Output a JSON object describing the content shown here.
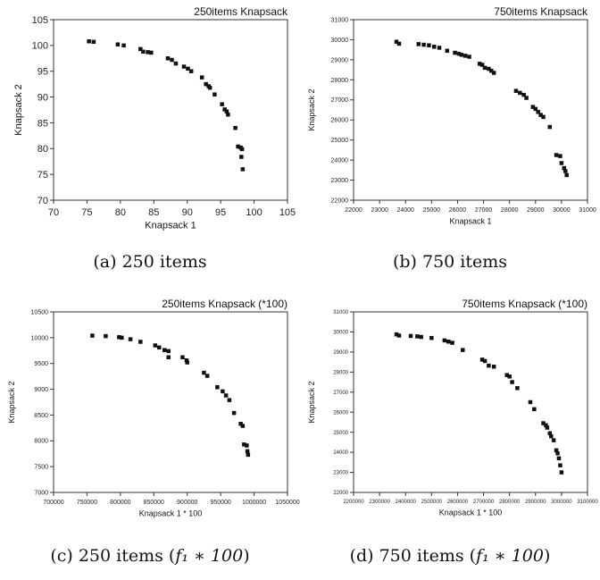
{
  "captions": [
    {
      "prefix": "(a) 250 items",
      "math": ""
    },
    {
      "prefix": "(b) 750 items",
      "math": ""
    },
    {
      "prefix": "(c) 250 items (",
      "math": "f₁ ∗ 100",
      "suffix": ")"
    },
    {
      "prefix": "(d) 750 items (",
      "math": "f₁ ∗ 100",
      "suffix": ")"
    }
  ],
  "chart_data": [
    {
      "type": "scatter",
      "title": "250items Knapsack",
      "xlabel": "Knapsack 1",
      "ylabel": "Knapsack 2",
      "xlim": [
        70,
        105
      ],
      "ylim": [
        70,
        105
      ],
      "xticks": [
        70,
        75,
        80,
        85,
        90,
        95,
        100,
        105
      ],
      "yticks": [
        70,
        75,
        80,
        85,
        90,
        95,
        100,
        105
      ],
      "xtick_labels": [
        "70",
        "75",
        "80",
        "85",
        "90",
        "95",
        "100",
        "105"
      ],
      "ytick_labels": [
        "70",
        "75",
        "80",
        "85",
        "90",
        "95",
        "100",
        "105"
      ],
      "tick_font": 11,
      "label_font": 11,
      "title_font": 12,
      "marker_color": "#111111",
      "points": [
        [
          75.3,
          100.8
        ],
        [
          76.0,
          100.7
        ],
        [
          79.6,
          100.2
        ],
        [
          80.5,
          100.0
        ],
        [
          83.0,
          99.3
        ],
        [
          83.4,
          98.8
        ],
        [
          84.1,
          98.7
        ],
        [
          84.6,
          98.6
        ],
        [
          87.1,
          97.5
        ],
        [
          87.7,
          97.2
        ],
        [
          88.3,
          96.5
        ],
        [
          89.5,
          95.9
        ],
        [
          90.1,
          95.5
        ],
        [
          90.6,
          95.0
        ],
        [
          92.2,
          93.8
        ],
        [
          92.8,
          92.5
        ],
        [
          93.2,
          92.1
        ],
        [
          93.4,
          91.8
        ],
        [
          94.1,
          90.5
        ],
        [
          95.2,
          88.6
        ],
        [
          95.6,
          87.6
        ],
        [
          95.9,
          87.2
        ],
        [
          96.1,
          86.6
        ],
        [
          97.2,
          84.0
        ],
        [
          97.6,
          80.4
        ],
        [
          98.0,
          80.2
        ],
        [
          98.2,
          79.9
        ],
        [
          98.1,
          78.4
        ],
        [
          98.3,
          76.0
        ]
      ]
    },
    {
      "type": "scatter",
      "title": "750items Knapsack",
      "xlabel": "Knapsack 1",
      "ylabel": "Knapsack 2",
      "xlim": [
        22000,
        31000
      ],
      "ylim": [
        22000,
        31000
      ],
      "xticks": [
        22000,
        23000,
        24000,
        25000,
        26000,
        27000,
        28000,
        29000,
        30000,
        31000
      ],
      "yticks": [
        22000,
        23000,
        24000,
        25000,
        26000,
        27000,
        28000,
        29000,
        30000,
        31000
      ],
      "xtick_labels": [
        "22000",
        "23000",
        "24000",
        "25000",
        "26000",
        "27000",
        "28000",
        "29000",
        "30000",
        "31000"
      ],
      "ytick_labels": [
        "22000",
        "23000",
        "24000",
        "25000",
        "26000",
        "27000",
        "28000",
        "29000",
        "30000",
        "31000"
      ],
      "tick_font": 7,
      "label_font": 9,
      "title_font": 12,
      "marker_color": "#111111",
      "points": [
        [
          23650,
          29900
        ],
        [
          23750,
          29800
        ],
        [
          24500,
          29780
        ],
        [
          24700,
          29750
        ],
        [
          24900,
          29720
        ],
        [
          25100,
          29650
        ],
        [
          25300,
          29600
        ],
        [
          25600,
          29450
        ],
        [
          25900,
          29350
        ],
        [
          26050,
          29300
        ],
        [
          26150,
          29250
        ],
        [
          26300,
          29200
        ],
        [
          26450,
          29150
        ],
        [
          26850,
          28800
        ],
        [
          26950,
          28750
        ],
        [
          27050,
          28600
        ],
        [
          27200,
          28550
        ],
        [
          27300,
          28450
        ],
        [
          27400,
          28350
        ],
        [
          28250,
          27450
        ],
        [
          28400,
          27350
        ],
        [
          28550,
          27250
        ],
        [
          28650,
          27100
        ],
        [
          28900,
          26650
        ],
        [
          29000,
          26550
        ],
        [
          29100,
          26400
        ],
        [
          29200,
          26250
        ],
        [
          29300,
          26150
        ],
        [
          29550,
          25650
        ],
        [
          29800,
          24250
        ],
        [
          29950,
          24200
        ],
        [
          30000,
          23850
        ],
        [
          30100,
          23600
        ],
        [
          30150,
          23450
        ],
        [
          30200,
          23250
        ]
      ]
    },
    {
      "type": "scatter",
      "title": "250items Knapsack (*100)",
      "xlabel": "Knapsack 1 * 100",
      "ylabel": "Knapsack 2",
      "xlim": [
        700000,
        1050000
      ],
      "ylim": [
        7000,
        10500
      ],
      "xticks": [
        700000,
        750000,
        800000,
        850000,
        900000,
        950000,
        1000000,
        1050000
      ],
      "yticks": [
        7000,
        7500,
        8000,
        8500,
        9000,
        9500,
        10000,
        10500
      ],
      "xtick_labels": [
        "700000",
        "750000",
        "800000",
        "850000",
        "900000",
        "950000",
        "1000000",
        "1050000"
      ],
      "ytick_labels": [
        "7000",
        "7500",
        "8000",
        "8500",
        "9000",
        "9500",
        "10000",
        "10500"
      ],
      "tick_font": 7,
      "label_font": 9,
      "title_font": 12,
      "marker_color": "#111111",
      "points": [
        [
          758000,
          10040
        ],
        [
          778000,
          10030
        ],
        [
          798000,
          10010
        ],
        [
          802000,
          10000
        ],
        [
          815000,
          9970
        ],
        [
          830000,
          9920
        ],
        [
          852000,
          9850
        ],
        [
          858000,
          9810
        ],
        [
          866000,
          9760
        ],
        [
          872000,
          9740
        ],
        [
          872000,
          9620
        ],
        [
          893000,
          9620
        ],
        [
          899000,
          9560
        ],
        [
          900000,
          9520
        ],
        [
          925000,
          9320
        ],
        [
          930000,
          9260
        ],
        [
          945000,
          9040
        ],
        [
          953000,
          8960
        ],
        [
          958000,
          8880
        ],
        [
          963000,
          8790
        ],
        [
          970000,
          8540
        ],
        [
          980000,
          8330
        ],
        [
          983000,
          8290
        ],
        [
          985000,
          7930
        ],
        [
          989000,
          7910
        ],
        [
          990000,
          7800
        ],
        [
          991000,
          7730
        ]
      ]
    },
    {
      "type": "scatter",
      "title": "750items Knapsack (*100)",
      "xlabel": "Knapsack 1 * 100",
      "ylabel": "Knapsack 2",
      "xlim": [
        2200000,
        3100000
      ],
      "ylim": [
        22000,
        31000
      ],
      "xticks": [
        2200000,
        2300000,
        2400000,
        2500000,
        2600000,
        2700000,
        2800000,
        2900000,
        3000000,
        3100000
      ],
      "yticks": [
        22000,
        23000,
        24000,
        25000,
        26000,
        27000,
        28000,
        29000,
        30000,
        31000
      ],
      "xtick_labels": [
        "2200000",
        "2300000",
        "2400000",
        "2500000",
        "2600000",
        "2700000",
        "2800000",
        "2900000",
        "3000000",
        "3100000"
      ],
      "ytick_labels": [
        "22000",
        "23000",
        "24000",
        "25000",
        "26000",
        "27000",
        "28000",
        "29000",
        "30000",
        "31000"
      ],
      "tick_font": 6,
      "label_font": 9,
      "title_font": 12,
      "marker_color": "#111111",
      "points": [
        [
          2365000,
          29880
        ],
        [
          2375000,
          29820
        ],
        [
          2420000,
          29800
        ],
        [
          2445000,
          29780
        ],
        [
          2460000,
          29750
        ],
        [
          2500000,
          29700
        ],
        [
          2550000,
          29580
        ],
        [
          2565000,
          29520
        ],
        [
          2580000,
          29460
        ],
        [
          2620000,
          29100
        ],
        [
          2695000,
          28620
        ],
        [
          2705000,
          28550
        ],
        [
          2720000,
          28320
        ],
        [
          2740000,
          28270
        ],
        [
          2790000,
          27850
        ],
        [
          2800000,
          27780
        ],
        [
          2810000,
          27500
        ],
        [
          2830000,
          27200
        ],
        [
          2880000,
          26500
        ],
        [
          2895000,
          26150
        ],
        [
          2930000,
          25450
        ],
        [
          2940000,
          25350
        ],
        [
          2945000,
          25230
        ],
        [
          2955000,
          24950
        ],
        [
          2960000,
          24800
        ],
        [
          2970000,
          24600
        ],
        [
          2980000,
          24100
        ],
        [
          2985000,
          23950
        ],
        [
          2990000,
          23700
        ],
        [
          2995000,
          23350
        ],
        [
          3000000,
          23000
        ]
      ]
    }
  ]
}
